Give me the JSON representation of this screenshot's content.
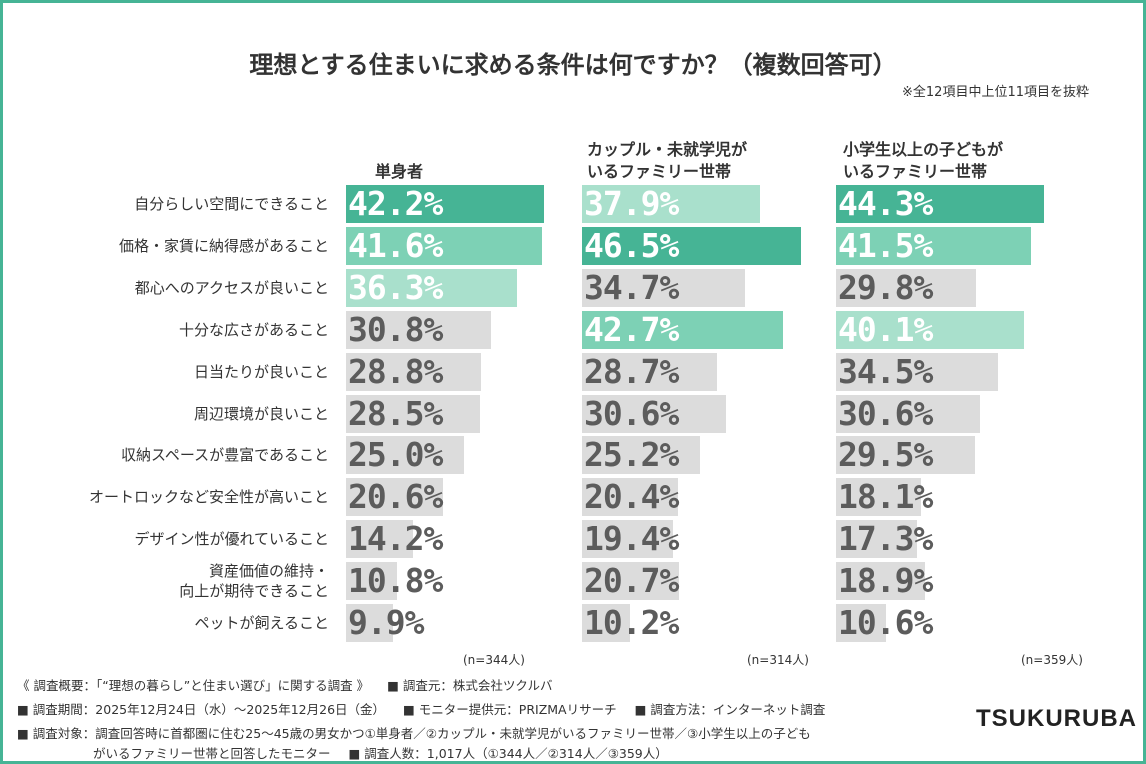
{
  "chart_data": {
    "type": "bar",
    "title": "理想とする住まいに求める条件は何ですか？（複数回答可）",
    "note": "※全12項目中上位11項目を抜粋",
    "categories": [
      "自分らしい空間にできること",
      "価格・家賃に納得感があること",
      "都心へのアクセスが良いこと",
      "十分な広さがあること",
      "日当たりが良いこと",
      "周辺環境が良いこと",
      "収納スペースが豊富であること",
      "オートロックなど安全性が高いこと",
      "デザイン性が優れていること",
      "資産価値の維持・\n向上が期待できること",
      "ペットが飼えること"
    ],
    "series": [
      {
        "name": "単身者",
        "n_label": "(n=344人)",
        "values": [
          42.2,
          41.6,
          36.3,
          30.8,
          28.8,
          28.5,
          25.0,
          20.6,
          14.2,
          10.8,
          9.9
        ],
        "labels": [
          "42.2%",
          "41.6%",
          "36.3%",
          "30.8%",
          "28.8%",
          "28.5%",
          "25.0%",
          "20.6%",
          "14.2%",
          "10.8%",
          "9.9%"
        ]
      },
      {
        "name": "カップル・未就学児が\nいるファミリー世帯",
        "n_label": "(n=314人)",
        "values": [
          37.9,
          46.5,
          34.7,
          42.7,
          28.7,
          30.6,
          25.2,
          20.4,
          19.4,
          20.7,
          10.2
        ],
        "labels": [
          "37.9%",
          "46.5%",
          "34.7%",
          "42.7%",
          "28.7%",
          "30.6%",
          "25.2%",
          "20.4%",
          "19.4%",
          "20.7%",
          "10.2%"
        ]
      },
      {
        "name": "小学生以上の子どもが\nいるファミリー世帯",
        "n_label": "(n=359人)",
        "values": [
          44.3,
          41.5,
          29.8,
          40.1,
          34.5,
          30.6,
          29.5,
          18.1,
          17.3,
          18.9,
          10.6
        ],
        "labels": [
          "44.3%",
          "41.5%",
          "29.8%",
          "40.1%",
          "34.5%",
          "30.6%",
          "29.5%",
          "18.1%",
          "17.3%",
          "18.9%",
          "10.6%"
        ]
      }
    ],
    "xlim": [
      0,
      50
    ],
    "colors": {
      "rank1": "#46b495",
      "rank2": "#7dd1b5",
      "rank3": "#a9e0cc",
      "other": "#dcdcdc",
      "text_dark": "#5c5c5c",
      "text_light": "#ffffff"
    }
  },
  "footer": {
    "line1": [
      "《 調査概要：「“理想の暮らし”と住まい選び」に関する調査 》",
      "■ 調査元：株式会社ツクルバ"
    ],
    "line2": [
      "■ 調査期間：2025年12月24日（水）〜2025年12月26日（金）",
      "■ モニター提供元：PRIZMAリサーチ",
      "■ 調査方法：インターネット調査"
    ],
    "line3": "■ 調査対象：調査回答時に首都圏に住む25〜45歳の男女かつ①単身者／②カップル・未就学児がいるファミリー世帯／③小学生以上の子ども",
    "line4": [
      "がいるファミリー世帯と回答したモニター",
      "■ 調査人数：1,017人（①344人／②314人／③359人）"
    ]
  },
  "logo": "TSUKURUBA"
}
